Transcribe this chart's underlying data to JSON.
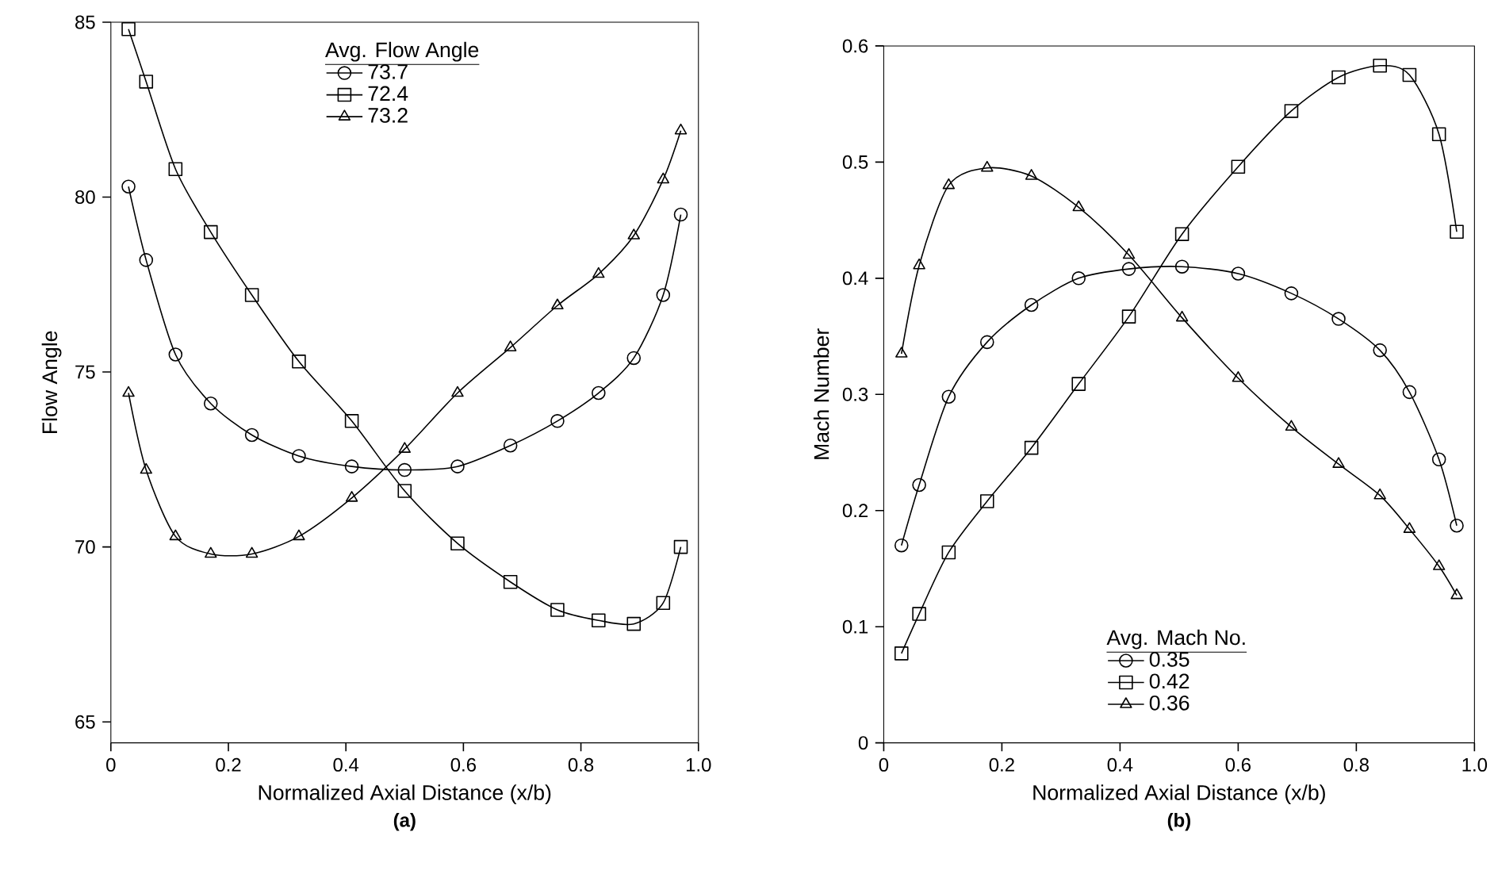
{
  "chart_data": [
    {
      "type": "line",
      "title": "(a)",
      "xlabel": "Normalized Axial Distance (x/b)",
      "ylabel": "Flow Angle",
      "legend_title": "Avg. Flow Angle",
      "legend": "top",
      "xlim": [
        0,
        1
      ],
      "ylim": [
        64.4,
        85
      ],
      "xticks": [
        0,
        0.2,
        0.4,
        0.6,
        0.8,
        {
          "value": 1,
          "label": "1.0"
        }
      ],
      "yticks": [
        65,
        70,
        75,
        80,
        85
      ],
      "grid": false,
      "line_style": "solid",
      "x": [
        0.03,
        0.06,
        0.11,
        0.17,
        0.24,
        0.32,
        0.41,
        0.5,
        0.59,
        0.68,
        0.76,
        0.83,
        0.89,
        0.94,
        0.97
      ],
      "series": [
        {
          "name": "73.7",
          "color": "#000000",
          "marker": "circle",
          "values": [
            80.3,
            78.2,
            75.5,
            74.1,
            73.2,
            72.6,
            72.3,
            72.2,
            72.3,
            72.9,
            73.6,
            74.4,
            75.4,
            77.2,
            79.5
          ]
        },
        {
          "name": "72.4",
          "color": "#000000",
          "marker": "square",
          "values": [
            84.8,
            83.3,
            80.8,
            79.0,
            77.2,
            75.3,
            73.6,
            71.6,
            70.1,
            69.0,
            68.2,
            67.9,
            67.8,
            68.4,
            70.0
          ]
        },
        {
          "name": "73.2",
          "color": "#000000",
          "marker": "triangle",
          "values": [
            74.4,
            72.2,
            70.3,
            69.8,
            69.8,
            70.3,
            71.4,
            72.8,
            74.4,
            75.7,
            76.9,
            77.8,
            78.9,
            80.5,
            81.9
          ]
        }
      ]
    },
    {
      "type": "line",
      "title": "(b)",
      "xlabel": "Normalized Axial Distance (x/b)",
      "ylabel": "Mach Number",
      "legend_title": "Avg. Mach No.",
      "legend": "bottom",
      "xlim": [
        0,
        1
      ],
      "ylim": [
        0,
        0.6
      ],
      "xticks": [
        0,
        0.2,
        0.4,
        0.6,
        0.8,
        {
          "value": 1,
          "label": "1.0"
        }
      ],
      "yticks": [
        0,
        0.1,
        0.2,
        0.3,
        0.4,
        0.5,
        0.6
      ],
      "grid": false,
      "line_style": "solid",
      "x": [
        0.03,
        0.06,
        0.11,
        0.175,
        0.25,
        0.33,
        0.415,
        0.505,
        0.6,
        0.69,
        0.77,
        0.84,
        0.89,
        0.94,
        0.97
      ],
      "series": [
        {
          "name": "0.35",
          "color": "#000000",
          "marker": "circle",
          "values": [
            0.17,
            0.222,
            0.298,
            0.345,
            0.377,
            0.4,
            0.408,
            0.41,
            0.404,
            0.387,
            0.365,
            0.338,
            0.302,
            0.244,
            0.187
          ]
        },
        {
          "name": "0.42",
          "color": "#000000",
          "marker": "square",
          "values": [
            0.077,
            0.111,
            0.164,
            0.208,
            0.254,
            0.309,
            0.367,
            0.438,
            0.496,
            0.544,
            0.573,
            0.583,
            0.575,
            0.524,
            0.44
          ]
        },
        {
          "name": "0.36",
          "color": "#000000",
          "marker": "triangle",
          "values": [
            0.335,
            0.411,
            0.48,
            0.495,
            0.488,
            0.461,
            0.42,
            0.366,
            0.314,
            0.272,
            0.24,
            0.213,
            0.184,
            0.152,
            0.127
          ]
        }
      ]
    }
  ]
}
